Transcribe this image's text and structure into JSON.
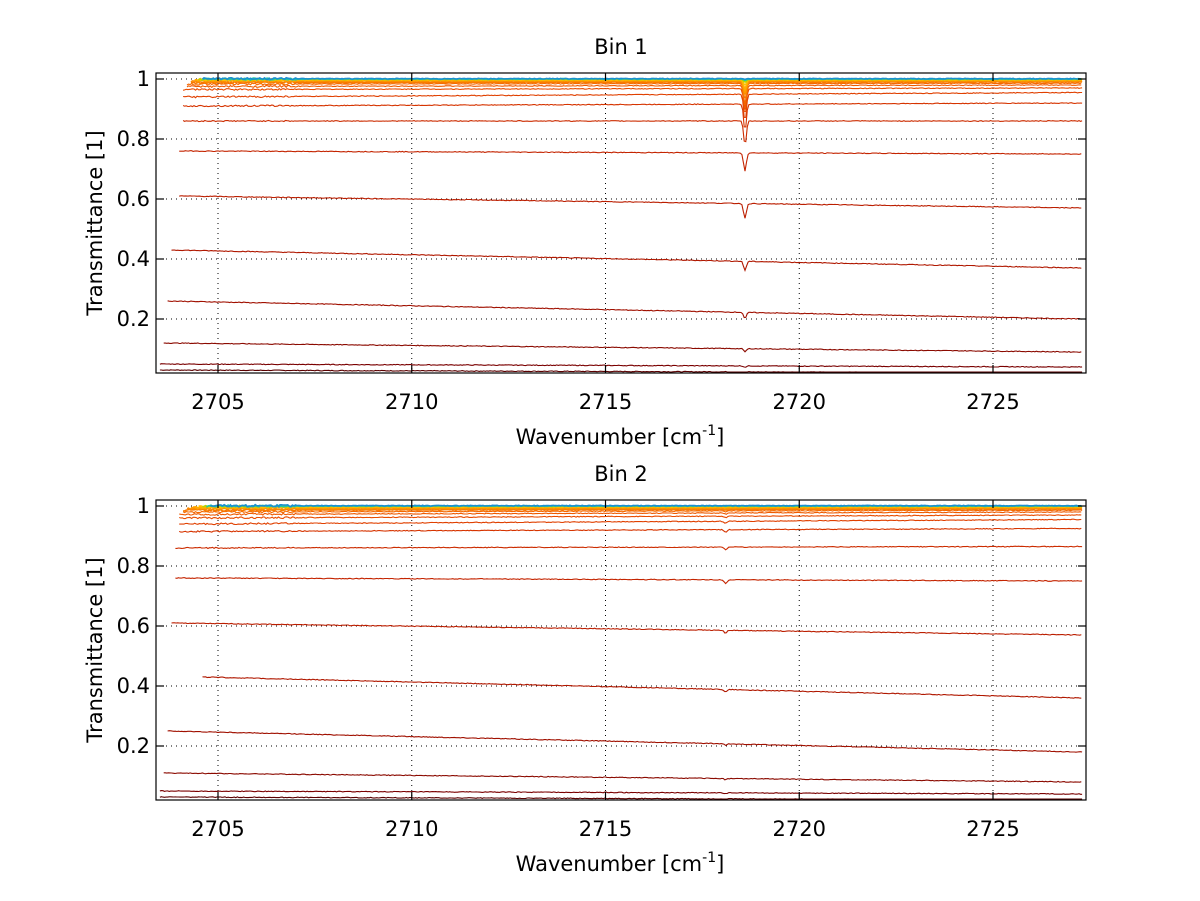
{
  "chart_data": [
    {
      "type": "line",
      "title": "Bin 1",
      "xlabel": "Wavenumber [cm",
      "xlabel_sup": "-1",
      "xlabel_end": "]",
      "ylabel": "Transmittance [1]",
      "xlim": [
        2703.4,
        2727.4
      ],
      "ylim": [
        0.02,
        1.02
      ],
      "xticks": [
        2705,
        2710,
        2715,
        2720,
        2725
      ],
      "xtick_labels": [
        "2705",
        "2710",
        "2715",
        "2720",
        "2725"
      ],
      "yticks": [
        0.2,
        0.4,
        0.6,
        0.8,
        1.0
      ],
      "ytick_labels": [
        "0.2",
        "0.4",
        "0.6",
        "0.8",
        "1"
      ],
      "grid": true,
      "absorption_feature": {
        "x": 2718.6
      },
      "series": [
        {
          "x_start": 2703.5,
          "y_start": 0.03,
          "y_end": 0.02,
          "dip": 0.002,
          "color": "#5a0000"
        },
        {
          "x_start": 2703.5,
          "y_start": 0.05,
          "y_end": 0.04,
          "dip": 0.004,
          "color": "#7a0000"
        },
        {
          "x_start": 2703.6,
          "y_start": 0.12,
          "y_end": 0.09,
          "dip": 0.01,
          "color": "#8b0a00"
        },
        {
          "x_start": 2703.7,
          "y_start": 0.26,
          "y_end": 0.2,
          "dip": 0.02,
          "color": "#a01000"
        },
        {
          "x_start": 2703.8,
          "y_start": 0.43,
          "y_end": 0.37,
          "dip": 0.03,
          "color": "#b01800"
        },
        {
          "x_start": 2704.0,
          "y_start": 0.61,
          "y_end": 0.57,
          "dip": 0.05,
          "color": "#bb1e00"
        },
        {
          "x_start": 2704.0,
          "y_start": 0.76,
          "y_end": 0.75,
          "dip": 0.06,
          "color": "#c42400"
        },
        {
          "x_start": 2704.1,
          "y_start": 0.86,
          "y_end": 0.86,
          "dip": 0.08,
          "color": "#cc2c00"
        },
        {
          "x_start": 2704.1,
          "y_start": 0.91,
          "y_end": 0.92,
          "dip": 0.09,
          "color": "#d63400"
        },
        {
          "x_start": 2704.1,
          "y_start": 0.94,
          "y_end": 0.955,
          "dip": 0.09,
          "color": "#e04000"
        },
        {
          "x_start": 2704.1,
          "y_start": 0.965,
          "y_end": 0.97,
          "dip": 0.09,
          "color": "#e84c00"
        },
        {
          "x_start": 2704.2,
          "y_start": 0.975,
          "y_end": 0.98,
          "dip": 0.08,
          "color": "#ee5a00"
        },
        {
          "x_start": 2704.2,
          "y_start": 0.983,
          "y_end": 0.986,
          "dip": 0.07,
          "color": "#f46800"
        },
        {
          "x_start": 2704.3,
          "y_start": 0.988,
          "y_end": 0.99,
          "dip": 0.06,
          "color": "#f87800"
        },
        {
          "x_start": 2704.3,
          "y_start": 0.992,
          "y_end": 0.993,
          "dip": 0.05,
          "color": "#fb8a00"
        },
        {
          "x_start": 2704.4,
          "y_start": 0.995,
          "y_end": 0.995,
          "dip": 0.04,
          "color": "#fd9c00"
        },
        {
          "x_start": 2704.4,
          "y_start": 0.997,
          "y_end": 0.997,
          "dip": 0.03,
          "color": "#ffae00"
        },
        {
          "x_start": 2704.5,
          "y_start": 0.998,
          "y_end": 0.998,
          "dip": 0.02,
          "color": "#ffc000"
        },
        {
          "x_start": 2704.5,
          "y_start": 0.999,
          "y_end": 0.999,
          "dip": 0.01,
          "color": "#b8d400"
        },
        {
          "x_start": 2704.6,
          "y_start": 1.0,
          "y_end": 1.0,
          "dip": 0.005,
          "color": "#22c8a0"
        },
        {
          "x_start": 2704.6,
          "y_start": 1.001,
          "y_end": 1.001,
          "dip": 0.002,
          "color": "#1a8fd0"
        }
      ]
    },
    {
      "type": "line",
      "title": "Bin 2",
      "xlabel": "Wavenumber [cm",
      "xlabel_sup": "-1",
      "xlabel_end": "]",
      "ylabel": "Transmittance [1]",
      "xlim": [
        2703.4,
        2727.4
      ],
      "ylim": [
        0.02,
        1.02
      ],
      "xticks": [
        2705,
        2710,
        2715,
        2720,
        2725
      ],
      "xtick_labels": [
        "2705",
        "2710",
        "2715",
        "2720",
        "2725"
      ],
      "yticks": [
        0.2,
        0.4,
        0.6,
        0.8,
        1.0
      ],
      "ytick_labels": [
        "0.2",
        "0.4",
        "0.6",
        "0.8",
        "1"
      ],
      "grid": true,
      "absorption_feature": {
        "x": 2718.1
      },
      "series": [
        {
          "x_start": 2703.5,
          "y_start": 0.03,
          "y_end": 0.02,
          "dip": 0.002,
          "color": "#5a0000"
        },
        {
          "x_start": 2703.5,
          "y_start": 0.05,
          "y_end": 0.04,
          "dip": 0.003,
          "color": "#7a0000"
        },
        {
          "x_start": 2703.6,
          "y_start": 0.11,
          "y_end": 0.08,
          "dip": 0.004,
          "color": "#8b0a00"
        },
        {
          "x_start": 2703.7,
          "y_start": 0.25,
          "y_end": 0.18,
          "dip": 0.005,
          "color": "#a01000"
        },
        {
          "x_start": 2704.6,
          "y_start": 0.43,
          "y_end": 0.36,
          "dip": 0.008,
          "color": "#b01800"
        },
        {
          "x_start": 2703.8,
          "y_start": 0.61,
          "y_end": 0.57,
          "dip": 0.01,
          "color": "#bb1e00"
        },
        {
          "x_start": 2703.9,
          "y_start": 0.76,
          "y_end": 0.75,
          "dip": 0.012,
          "color": "#c42400"
        },
        {
          "x_start": 2703.9,
          "y_start": 0.86,
          "y_end": 0.865,
          "dip": 0.01,
          "color": "#cc2c00"
        },
        {
          "x_start": 2704.0,
          "y_start": 0.915,
          "y_end": 0.925,
          "dip": 0.008,
          "color": "#d63400"
        },
        {
          "x_start": 2704.0,
          "y_start": 0.94,
          "y_end": 0.955,
          "dip": 0.006,
          "color": "#e04000"
        },
        {
          "x_start": 2704.0,
          "y_start": 0.96,
          "y_end": 0.97,
          "dip": 0.005,
          "color": "#e84c00"
        },
        {
          "x_start": 2704.0,
          "y_start": 0.972,
          "y_end": 0.98,
          "dip": 0.004,
          "color": "#ee5a00"
        },
        {
          "x_start": 2704.1,
          "y_start": 0.98,
          "y_end": 0.986,
          "dip": 0.003,
          "color": "#f46800"
        },
        {
          "x_start": 2704.1,
          "y_start": 0.986,
          "y_end": 0.99,
          "dip": 0.002,
          "color": "#f87800"
        },
        {
          "x_start": 2704.2,
          "y_start": 0.99,
          "y_end": 0.993,
          "dip": 0.002,
          "color": "#fb8a00"
        },
        {
          "x_start": 2704.3,
          "y_start": 0.994,
          "y_end": 0.995,
          "dip": 0.001,
          "color": "#fd9c00"
        },
        {
          "x_start": 2704.4,
          "y_start": 0.996,
          "y_end": 0.997,
          "dip": 0.001,
          "color": "#ffae00"
        },
        {
          "x_start": 2704.5,
          "y_start": 0.998,
          "y_end": 0.998,
          "dip": 0.001,
          "color": "#ffc000"
        },
        {
          "x_start": 2704.6,
          "y_start": 0.999,
          "y_end": 0.999,
          "dip": 0.0,
          "color": "#b8d400"
        },
        {
          "x_start": 2704.7,
          "y_start": 1.0,
          "y_end": 1.0,
          "dip": 0.0,
          "color": "#22c8a0"
        },
        {
          "x_start": 2704.8,
          "y_start": 1.001,
          "y_end": 1.001,
          "dip": 0.0,
          "color": "#1a8fd0"
        }
      ]
    }
  ]
}
